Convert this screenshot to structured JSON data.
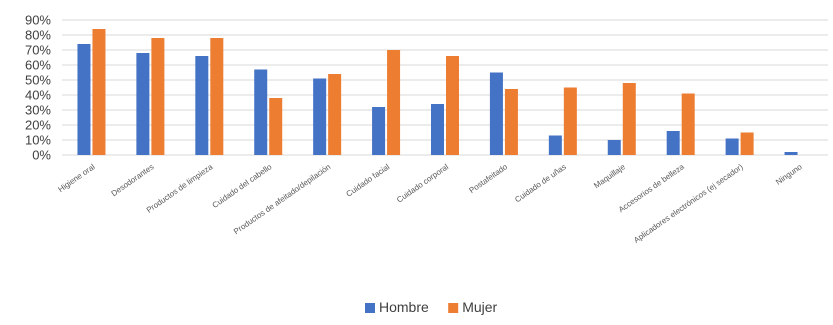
{
  "chart_data": {
    "type": "bar",
    "title": "",
    "xlabel": "",
    "ylabel": "",
    "ylim": [
      0,
      90
    ],
    "yticks": [
      "0%",
      "10%",
      "20%",
      "30%",
      "40%",
      "50%",
      "60%",
      "70%",
      "80%",
      "90%"
    ],
    "ytick_values": [
      0,
      10,
      20,
      30,
      40,
      50,
      60,
      70,
      80,
      90
    ],
    "grid": true,
    "legend_position": "bottom",
    "categories": [
      "Higiene oral",
      "Desodorantes",
      "Productos de limpieza",
      "Cuidado del cabello",
      "Productos de afeitado/depilación",
      "Cuidado facial",
      "Cuidado corporal",
      "Postafeitado",
      "Cuidado de uñas",
      "Maquillaje",
      "Accesorios de belleza",
      "Aplicadores electrónicos (ej secador)",
      "Ninguno"
    ],
    "series": [
      {
        "name": "Hombre",
        "color": "#4472c4",
        "values": [
          74,
          68,
          66,
          57,
          51,
          32,
          34,
          55,
          13,
          10,
          16,
          11,
          2
        ]
      },
      {
        "name": "Mujer",
        "color": "#ed7d31",
        "values": [
          84,
          78,
          78,
          38,
          54,
          70,
          66,
          44,
          45,
          48,
          41,
          15,
          0
        ]
      }
    ]
  },
  "colors": {
    "grid": "#d9d9d9",
    "axis_text": "#404040",
    "category_text": "#595959"
  }
}
